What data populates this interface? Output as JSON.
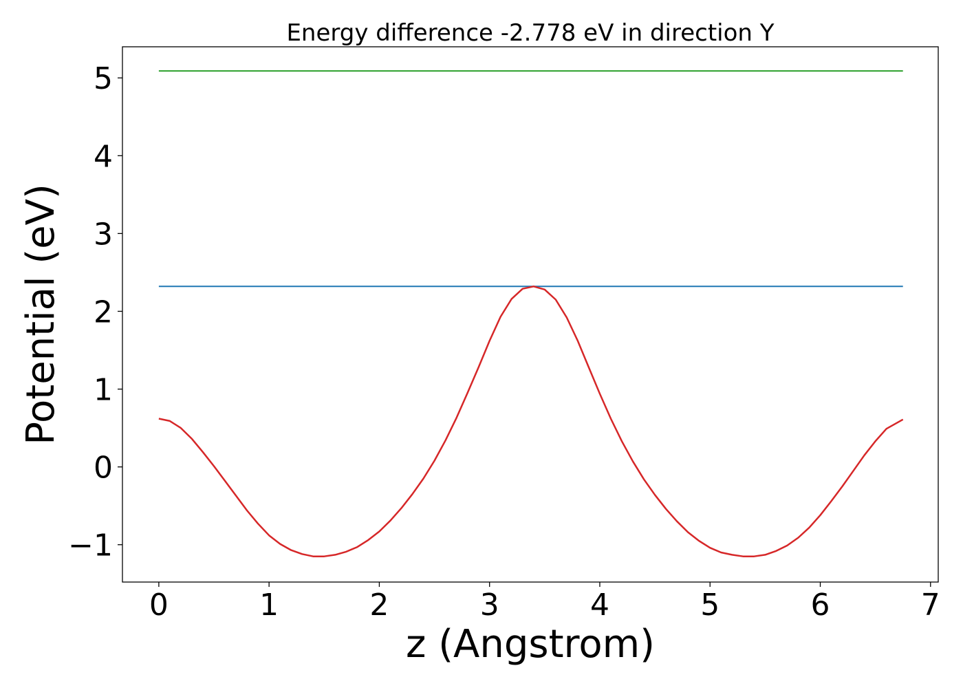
{
  "chart_data": {
    "type": "line",
    "title": "Energy difference -2.778 eV in direction Y",
    "xlabel": "z (Angstrom)",
    "ylabel": "Potential (eV)",
    "xlim": [
      -0.33,
      7.07
    ],
    "ylim": [
      -1.48,
      5.4
    ],
    "grid": false,
    "x_ticks": [
      {
        "value": 0,
        "label": "0"
      },
      {
        "value": 1,
        "label": "1"
      },
      {
        "value": 2,
        "label": "2"
      },
      {
        "value": 3,
        "label": "3"
      },
      {
        "value": 4,
        "label": "4"
      },
      {
        "value": 5,
        "label": "5"
      },
      {
        "value": 6,
        "label": "6"
      },
      {
        "value": 7,
        "label": "7"
      }
    ],
    "y_ticks": [
      {
        "value": -1,
        "label": "−1"
      },
      {
        "value": 0,
        "label": "0"
      },
      {
        "value": 1,
        "label": "1"
      },
      {
        "value": 2,
        "label": "2"
      },
      {
        "value": 3,
        "label": "3"
      },
      {
        "value": 4,
        "label": "4"
      },
      {
        "value": 5,
        "label": "5"
      }
    ],
    "series": [
      {
        "color": "#2ca02c",
        "style": "hline",
        "x": [
          0,
          6.75
        ],
        "y": [
          5.09,
          5.09
        ]
      },
      {
        "color": "#1f77b4",
        "style": "hline",
        "x": [
          0,
          6.75
        ],
        "y": [
          2.32,
          2.32
        ]
      },
      {
        "color": "#d62728",
        "style": "curve",
        "x": [
          0.0,
          0.1,
          0.2,
          0.3,
          0.4,
          0.5,
          0.6,
          0.7,
          0.8,
          0.9,
          1.0,
          1.1,
          1.2,
          1.3,
          1.4,
          1.5,
          1.6,
          1.7,
          1.8,
          1.9,
          2.0,
          2.1,
          2.2,
          2.3,
          2.4,
          2.5,
          2.6,
          2.7,
          2.8,
          2.9,
          3.0,
          3.1,
          3.2,
          3.3,
          3.4,
          3.5,
          3.6,
          3.7,
          3.8,
          3.9,
          4.0,
          4.1,
          4.2,
          4.3,
          4.4,
          4.5,
          4.6,
          4.7,
          4.8,
          4.9,
          5.0,
          5.1,
          5.2,
          5.3,
          5.4,
          5.5,
          5.6,
          5.7,
          5.8,
          5.9,
          6.0,
          6.1,
          6.2,
          6.3,
          6.4,
          6.5,
          6.6,
          6.75
        ],
        "y": [
          0.62,
          0.59,
          0.5,
          0.36,
          0.19,
          0.01,
          -0.18,
          -0.37,
          -0.56,
          -0.73,
          -0.88,
          -0.99,
          -1.07,
          -1.12,
          -1.15,
          -1.15,
          -1.13,
          -1.09,
          -1.03,
          -0.94,
          -0.83,
          -0.69,
          -0.53,
          -0.35,
          -0.15,
          0.08,
          0.34,
          0.63,
          0.95,
          1.28,
          1.62,
          1.93,
          2.16,
          2.29,
          2.32,
          2.28,
          2.15,
          1.92,
          1.62,
          1.28,
          0.94,
          0.62,
          0.33,
          0.07,
          -0.16,
          -0.36,
          -0.54,
          -0.7,
          -0.84,
          -0.95,
          -1.04,
          -1.1,
          -1.13,
          -1.15,
          -1.15,
          -1.13,
          -1.08,
          -1.01,
          -0.91,
          -0.78,
          -0.62,
          -0.44,
          -0.25,
          -0.05,
          0.15,
          0.33,
          0.49,
          0.61
        ]
      }
    ]
  }
}
